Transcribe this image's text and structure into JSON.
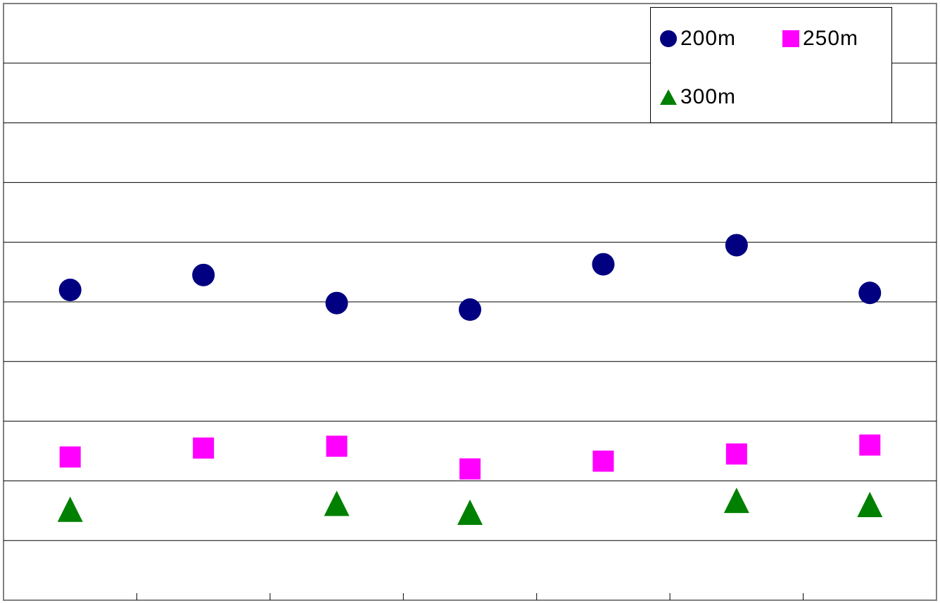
{
  "chart_data": {
    "type": "scatter",
    "title": "",
    "xlabel": "",
    "ylabel": "",
    "x": [
      1,
      2,
      3,
      4,
      5,
      6,
      7
    ],
    "xlim": [
      0.5,
      7.5
    ],
    "ylim": [
      0,
      10
    ],
    "grid": true,
    "legend_position": "top-right",
    "series": [
      {
        "name": "200m",
        "marker": "circle",
        "color": "#000080",
        "values": [
          5.2,
          5.45,
          4.98,
          4.87,
          5.63,
          5.95,
          5.15
        ]
      },
      {
        "name": "250m",
        "marker": "square",
        "color": "#FF00FF",
        "values": [
          2.4,
          2.55,
          2.58,
          2.2,
          2.33,
          2.45,
          2.6
        ]
      },
      {
        "name": "300m",
        "marker": "triangle",
        "color": "#008000",
        "values": [
          1.5,
          null,
          1.6,
          1.45,
          null,
          1.65,
          1.58
        ]
      }
    ]
  }
}
